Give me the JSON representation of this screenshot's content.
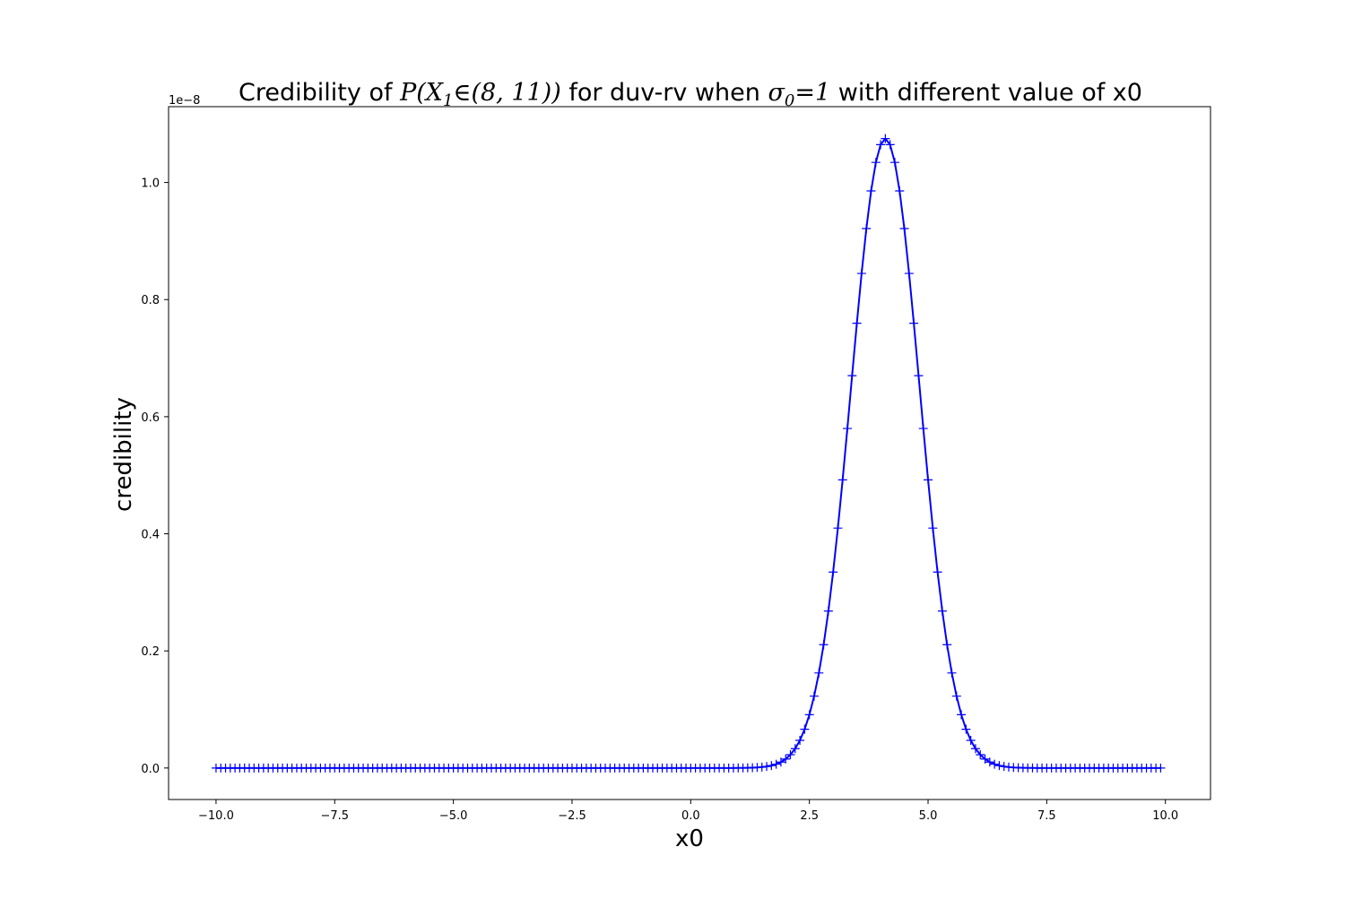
{
  "chart_data": {
    "type": "line",
    "title_parts": {
      "prefix": "Credibility of ",
      "math1": "P(X",
      "math1_sub": "1",
      "math1_rest": "∈(8, 11))",
      "middle": " for duv-rv when ",
      "math2": "σ",
      "math2_sub": "0",
      "math2_rest": "=1",
      "suffix": " with different value of x0"
    },
    "xlabel": "x0",
    "ylabel": "credibility",
    "offset_text": "1e−8",
    "xlim": [
      -11.0,
      10.95
    ],
    "ylim": [
      -0.0538,
      1.1295
    ],
    "xticks": [
      -10.0,
      -7.5,
      -5.0,
      -2.5,
      0.0,
      2.5,
      5.0,
      7.5,
      10.0
    ],
    "xtick_labels": [
      "−10.0",
      "−7.5",
      "−5.0",
      "−2.5",
      "0.0",
      "2.5",
      "5.0",
      "7.5",
      "10.0"
    ],
    "yticks": [
      0.0,
      0.2,
      0.4,
      0.6,
      0.8,
      1.0
    ],
    "ytick_labels": [
      "0.0",
      "0.2",
      "0.4",
      "0.6",
      "0.8",
      "1.0"
    ],
    "series": [
      {
        "color": "#0000ff",
        "marker": "+",
        "x_start": -10.0,
        "x_stop": 9.9,
        "x_step": 0.1,
        "gaussian": {
          "amplitude": 1.075,
          "mean": 4.1,
          "sigma": 0.72
        }
      }
    ]
  }
}
